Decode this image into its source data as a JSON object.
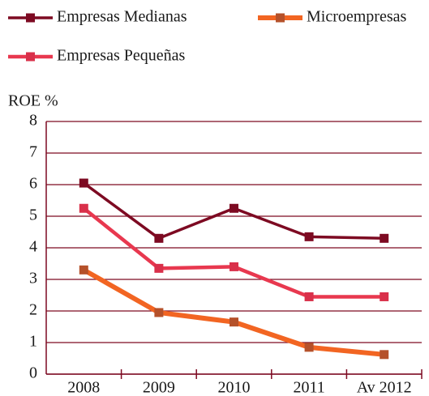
{
  "chart_data": {
    "type": "line",
    "y_axis_label": "ROE %",
    "categories": [
      "2008",
      "2009",
      "2010",
      "2011",
      "Av 2012"
    ],
    "series": [
      {
        "name": "Empresas Medianas",
        "color": "#7d0a22",
        "marker_color": "#7d0a22",
        "values": [
          6.05,
          4.3,
          5.25,
          4.35,
          4.3
        ]
      },
      {
        "name": "Microempresas",
        "color": "#f26522",
        "marker_color": "#b5512a",
        "values": [
          3.3,
          1.95,
          1.65,
          0.85,
          0.62
        ]
      },
      {
        "name": "Empresas Pequeñas",
        "color": "#e8384f",
        "marker_color": "#d9304a",
        "values": [
          5.25,
          3.35,
          3.4,
          2.45,
          2.45
        ]
      }
    ],
    "ylim": [
      0,
      8
    ],
    "yticks": [
      0,
      1,
      2,
      3,
      4,
      5,
      6,
      7,
      8
    ],
    "grid": true,
    "axis_color": "#7d0a22"
  }
}
